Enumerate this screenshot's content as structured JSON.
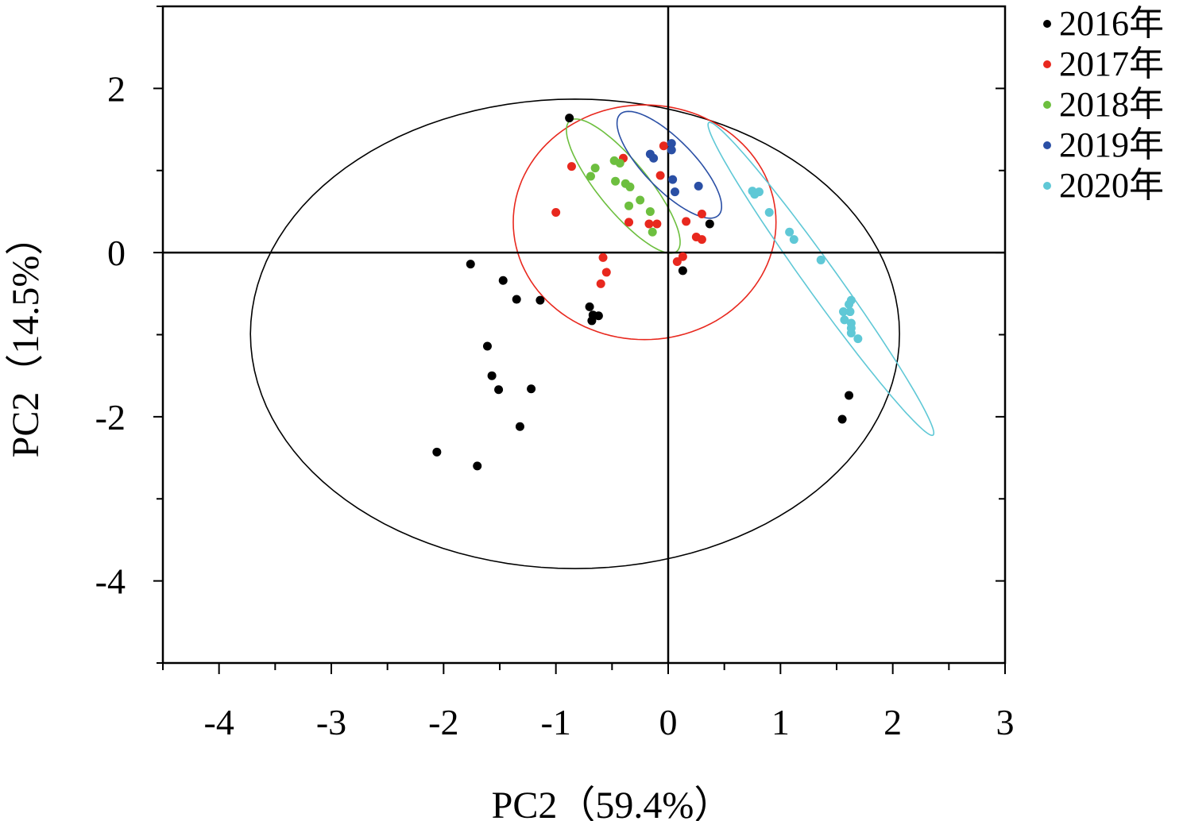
{
  "chart_data": {
    "type": "scatter",
    "title": "",
    "xlabel": "PC2（59.4%）",
    "ylabel": "PC2（14.5%）",
    "xlim": [
      -4.5,
      3
    ],
    "ylim": [
      -5,
      3
    ],
    "xticks": [
      -4,
      -3,
      -2,
      -1,
      0,
      1,
      2,
      3
    ],
    "xtick_labels": [
      "-4",
      "-3",
      "-2",
      "-1",
      "0",
      "1",
      "2",
      "3"
    ],
    "yticks": [
      2,
      0,
      -2,
      -4
    ],
    "ytick_labels": [
      "2",
      "0",
      "-2",
      "-4"
    ],
    "grid": false,
    "reference_lines": {
      "x": 0,
      "y": 0
    },
    "legend_position": "top-right-outside",
    "series": [
      {
        "name": "2016年",
        "color": "#000000",
        "points": [
          [
            -0.88,
            1.64
          ],
          [
            -1.76,
            -0.14
          ],
          [
            -1.47,
            -0.34
          ],
          [
            -1.35,
            -0.57
          ],
          [
            -1.14,
            -0.58
          ],
          [
            -0.7,
            -0.66
          ],
          [
            -0.67,
            -0.76
          ],
          [
            -0.62,
            -0.77
          ],
          [
            -0.68,
            -0.83
          ],
          [
            -1.61,
            -1.14
          ],
          [
            -1.57,
            -1.5
          ],
          [
            -1.51,
            -1.67
          ],
          [
            -1.22,
            -1.66
          ],
          [
            -1.32,
            -2.12
          ],
          [
            -2.06,
            -2.43
          ],
          [
            -1.7,
            -2.6
          ],
          [
            0.37,
            0.35
          ],
          [
            0.13,
            -0.22
          ],
          [
            1.61,
            -1.74
          ],
          [
            1.55,
            -2.03
          ]
        ],
        "ellipse": {
          "center": [
            -0.83,
            -0.99
          ],
          "semi_axes": [
            2.89,
            2.86
          ],
          "angle_deg": 0
        }
      },
      {
        "name": "2017年",
        "color": "#e8281e",
        "points": [
          [
            -0.04,
            1.3
          ],
          [
            -0.4,
            1.15
          ],
          [
            -0.86,
            1.05
          ],
          [
            -0.07,
            0.94
          ],
          [
            -1.0,
            0.49
          ],
          [
            -0.35,
            0.37
          ],
          [
            -0.17,
            0.35
          ],
          [
            -0.1,
            0.35
          ],
          [
            0.3,
            0.47
          ],
          [
            0.16,
            0.38
          ],
          [
            0.25,
            0.19
          ],
          [
            0.3,
            0.16
          ],
          [
            0.13,
            -0.05
          ],
          [
            0.08,
            -0.11
          ],
          [
            -0.58,
            -0.06
          ],
          [
            -0.55,
            -0.24
          ],
          [
            -0.6,
            -0.38
          ]
        ],
        "ellipse": {
          "center": [
            -0.21,
            0.37
          ],
          "semi_axes": [
            1.17,
            1.43
          ],
          "angle_deg": 0
        }
      },
      {
        "name": "2018年",
        "color": "#6dbf3f",
        "points": [
          [
            -0.48,
            1.12
          ],
          [
            -0.43,
            1.09
          ],
          [
            -0.65,
            1.03
          ],
          [
            -0.69,
            0.93
          ],
          [
            -0.47,
            0.87
          ],
          [
            -0.38,
            0.84
          ],
          [
            -0.34,
            0.8
          ],
          [
            -0.25,
            0.64
          ],
          [
            -0.35,
            0.57
          ],
          [
            -0.16,
            0.5
          ],
          [
            -0.14,
            0.25
          ]
        ],
        "ellipse": {
          "center": [
            -0.4,
            0.81
          ],
          "semi_axes": [
            0.93,
            0.245
          ],
          "angle_deg": -60.4
        }
      },
      {
        "name": "2019年",
        "color": "#2a4fa5",
        "points": [
          [
            0.03,
            1.33
          ],
          [
            0.03,
            1.25
          ],
          [
            -0.16,
            1.2
          ],
          [
            -0.13,
            1.15
          ],
          [
            0.04,
            0.89
          ],
          [
            0.06,
            0.74
          ],
          [
            0.27,
            0.81
          ]
        ],
        "ellipse": {
          "center": [
            0.01,
            1.07
          ],
          "semi_axes": [
            0.76,
            0.25
          ],
          "angle_deg": -56.8
        }
      },
      {
        "name": "2020年",
        "color": "#5fc8d6",
        "points": [
          [
            0.75,
            0.75
          ],
          [
            0.81,
            0.74
          ],
          [
            0.77,
            0.71
          ],
          [
            0.9,
            0.49
          ],
          [
            1.08,
            0.25
          ],
          [
            1.12,
            0.16
          ],
          [
            1.36,
            -0.09
          ],
          [
            1.63,
            -0.58
          ],
          [
            1.61,
            -0.63
          ],
          [
            1.56,
            -0.72
          ],
          [
            1.62,
            -0.72
          ],
          [
            1.57,
            -0.82
          ],
          [
            1.63,
            -0.86
          ],
          [
            1.63,
            -0.92
          ],
          [
            1.63,
            -0.98
          ],
          [
            1.69,
            -1.05
          ]
        ],
        "ellipse": {
          "center": [
            1.36,
            -0.32
          ],
          "semi_axes": [
            2.15,
            0.153
          ],
          "angle_deg": -62.4
        }
      }
    ]
  }
}
